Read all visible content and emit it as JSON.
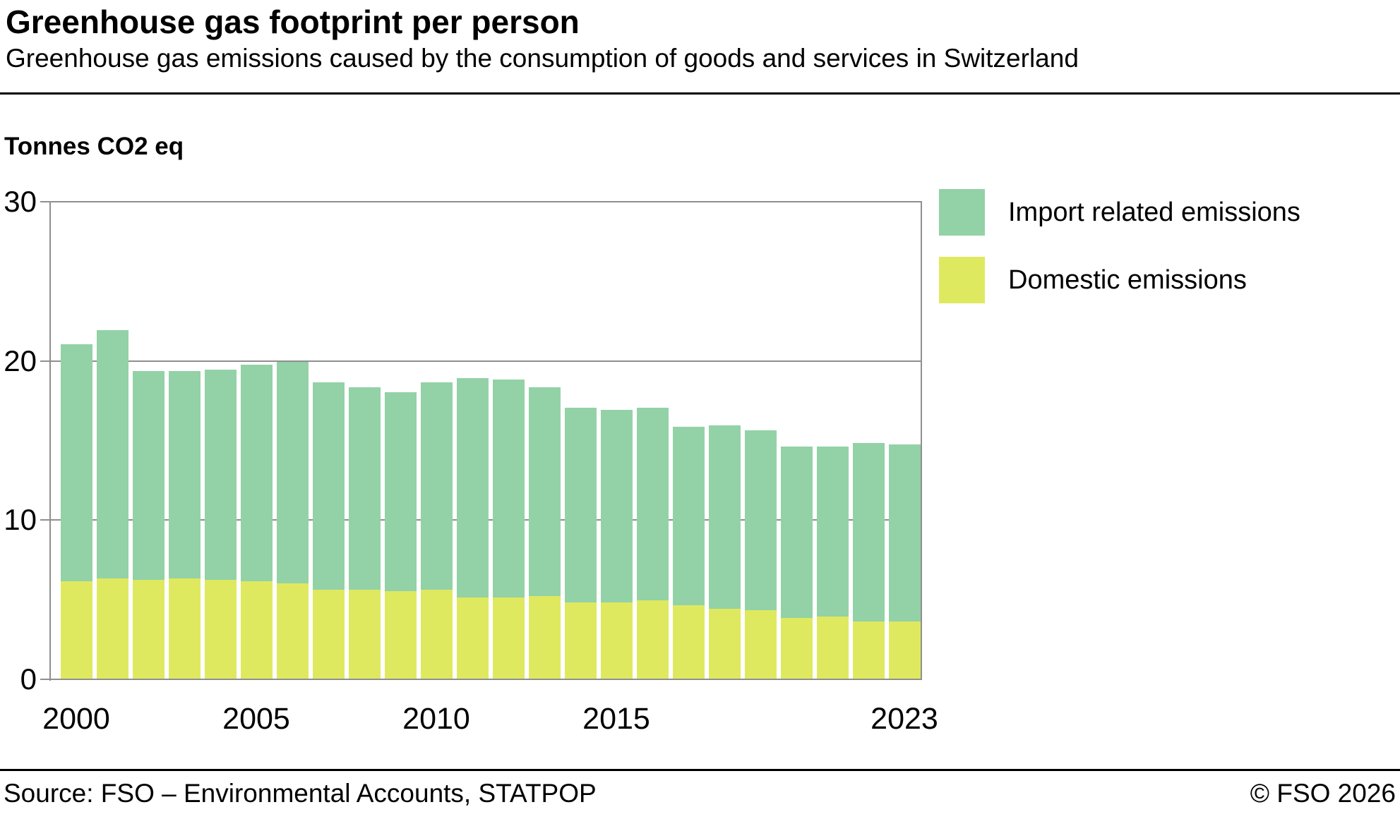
{
  "header": {
    "title": "Greenhouse gas footprint per person",
    "subtitle": "Greenhouse gas emissions caused by the consumption of goods and services in Switzerland"
  },
  "panel": {
    "unit_label": "Tonnes CO2 eq"
  },
  "legend": {
    "items": [
      {
        "label": "Import related emissions",
        "color": "#93d1a7"
      },
      {
        "label": "Domestic emissions",
        "color": "#dfe95f"
      }
    ]
  },
  "footer": {
    "source": "Source: FSO – Environmental Accounts, STATPOP",
    "copyright": "© FSO 2026"
  },
  "chart_data": {
    "type": "bar",
    "stacked": true,
    "title": "Greenhouse gas footprint per person",
    "xlabel": "",
    "ylabel": "Tonnes CO2 eq",
    "ylim": [
      0,
      30
    ],
    "yticks": [
      0,
      10,
      20,
      30
    ],
    "xtick_labels": [
      2000,
      2005,
      2010,
      2015,
      2023
    ],
    "grid": true,
    "legend_position": "top-right",
    "categories": [
      2000,
      2001,
      2002,
      2003,
      2004,
      2005,
      2006,
      2007,
      2008,
      2009,
      2010,
      2011,
      2012,
      2013,
      2014,
      2015,
      2016,
      2017,
      2018,
      2019,
      2020,
      2021,
      2022,
      2023
    ],
    "series": [
      {
        "name": "Domestic emissions",
        "color": "#dfe95f",
        "values": [
          6.1,
          6.3,
          6.2,
          6.3,
          6.2,
          6.1,
          6.0,
          5.6,
          5.6,
          5.5,
          5.6,
          5.1,
          5.1,
          5.2,
          4.8,
          4.8,
          4.9,
          4.6,
          4.4,
          4.3,
          3.8,
          3.9,
          3.6,
          3.6
        ]
      },
      {
        "name": "Import related emissions",
        "color": "#93d1a7",
        "values": [
          14.9,
          15.6,
          13.1,
          13.0,
          13.2,
          13.6,
          13.9,
          13.0,
          12.7,
          12.5,
          13.0,
          13.8,
          13.7,
          13.1,
          12.2,
          12.1,
          12.1,
          11.2,
          11.5,
          11.3,
          10.8,
          10.7,
          11.2,
          11.1
        ]
      }
    ],
    "totals": [
      21.0,
      21.9,
      19.3,
      19.3,
      19.4,
      19.7,
      19.9,
      18.6,
      18.3,
      18.0,
      18.6,
      18.9,
      18.8,
      18.3,
      17.0,
      16.9,
      17.0,
      15.8,
      15.9,
      15.6,
      14.6,
      14.6,
      14.8,
      14.7
    ]
  }
}
